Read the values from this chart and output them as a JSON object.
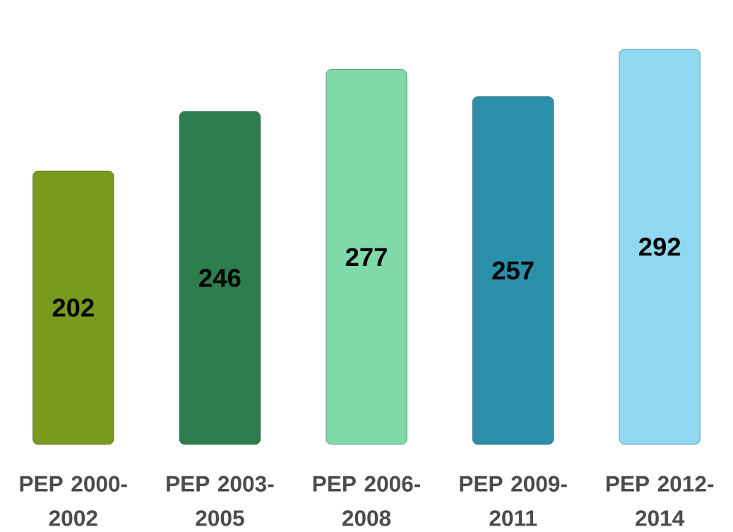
{
  "chart_data": {
    "type": "bar",
    "categories": [
      "PEP 2000-2002",
      "PEP 2003-2005",
      "PEP 2006-2008",
      "PEP 2009-2011",
      "PEP 2012-2014"
    ],
    "values": [
      202,
      246,
      277,
      257,
      292
    ],
    "colors": [
      "#7a9a1f",
      "#2e7d4f",
      "#7fd9a8",
      "#2a8fa8",
      "#8fd8f0"
    ],
    "data_labels": true
  }
}
